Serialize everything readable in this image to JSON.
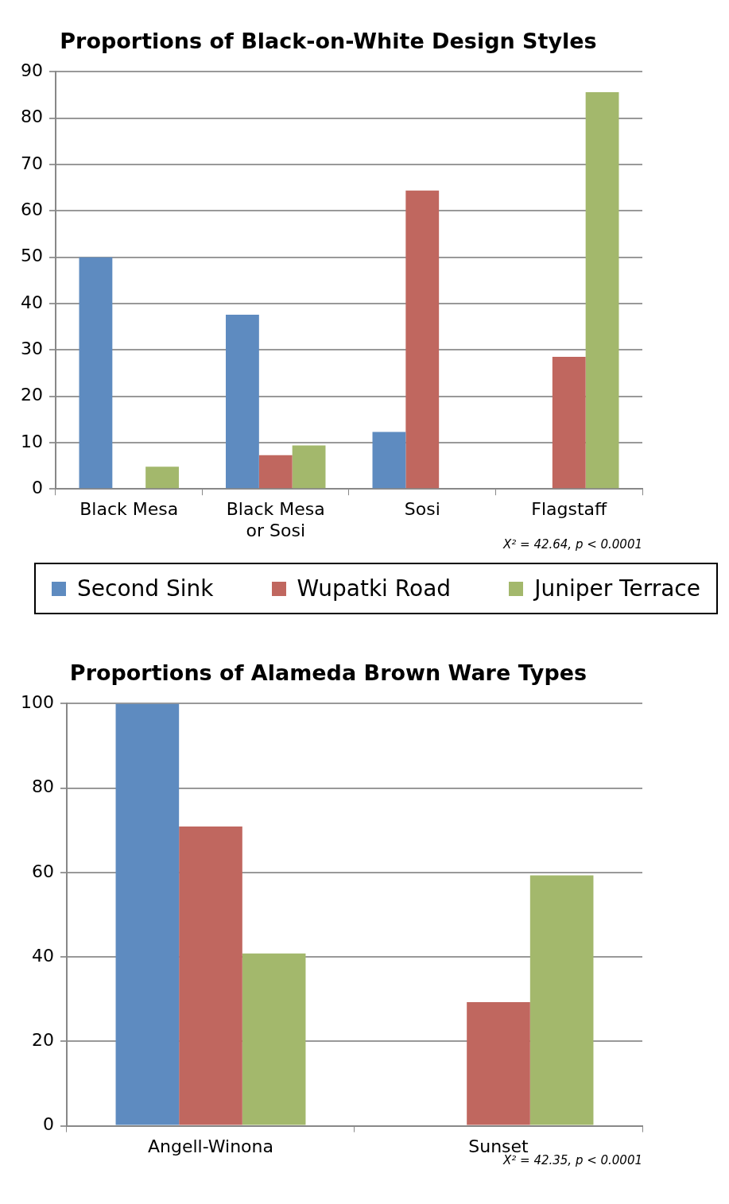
{
  "chart_data": [
    {
      "type": "bar",
      "title": "Proportions of Black-on-White Design Styles",
      "categories": [
        "Black Mesa",
        "Black Mesa or Sosi",
        "Sosi",
        "Flagstaff"
      ],
      "series": [
        {
          "name": "Second Sink",
          "color": "#5e8bc0",
          "values": [
            50,
            37.6,
            12.3,
            0
          ]
        },
        {
          "name": "Wupatki Road",
          "color": "#c0675f",
          "values": [
            0,
            7.3,
            64.4,
            28.5
          ]
        },
        {
          "name": "Juniper Terrace",
          "color": "#a3b86c",
          "values": [
            4.8,
            9.4,
            0,
            85.6
          ]
        }
      ],
      "ylim": [
        0,
        90
      ],
      "yticks": [
        0,
        10,
        20,
        30,
        40,
        50,
        60,
        70,
        80,
        90
      ],
      "grid": "y",
      "legend": "bottom",
      "annotations": [
        "X² = 42.64, p < 0.0001"
      ]
    },
    {
      "type": "bar",
      "title": "Proportions of Alameda Brown Ware Types",
      "categories": [
        "Angell-Winona",
        "Sunset"
      ],
      "series": [
        {
          "color": "#5e8bc0",
          "values": [
            100,
            0
          ]
        },
        {
          "color": "#c0675f",
          "values": [
            70.9,
            29.3
          ]
        },
        {
          "color": "#a3b86c",
          "values": [
            40.8,
            59.3
          ]
        }
      ],
      "ylim": [
        0,
        100
      ],
      "yticks": [
        0,
        20,
        40,
        60,
        80,
        100
      ],
      "grid": "y",
      "annotations": [
        "X² = 42.35, p < 0.0001"
      ]
    }
  ]
}
